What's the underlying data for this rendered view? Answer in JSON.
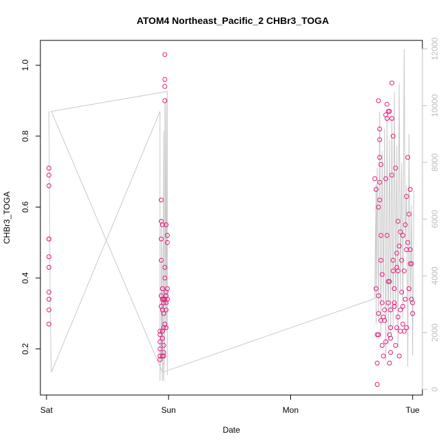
{
  "chart_data": {
    "type": "scatter",
    "title": "ATOM4 Northeast_Pacific_2 CHBr3_TOGA",
    "xlabel": "Date",
    "ylabel": "CHBr3_TOGA",
    "x_unit": "days since Sat 00:00",
    "xlim": [
      -0.05,
      3.08
    ],
    "ylim": [
      0.07,
      1.07
    ],
    "right_ylim": [
      -200,
      12300
    ],
    "x_ticks": [
      {
        "value": 0,
        "label": "Sat"
      },
      {
        "value": 1,
        "label": "Sun"
      },
      {
        "value": 2,
        "label": "Mon"
      },
      {
        "value": 3,
        "label": "Tue"
      }
    ],
    "y_ticks": [
      0.2,
      0.4,
      0.6,
      0.8,
      1.0
    ],
    "y_tick_labels": [
      "0.2",
      "0.4",
      "0.6",
      "0.8",
      "1.0"
    ],
    "right_ticks": [
      0,
      2000,
      4000,
      6000,
      8000,
      10000,
      12000
    ],
    "right_tick_labels": [
      "0",
      "2000",
      "4000",
      "6000",
      "8000",
      "10000",
      "12000"
    ],
    "colors": {
      "points": "#e0187a",
      "line": "#c8c8c8",
      "axis": "#000000",
      "right_axis": "#bdbdbd"
    },
    "series": [
      {
        "role": "points",
        "x": [
          0.02,
          0.02,
          0.02,
          0.02,
          0.02,
          0.02,
          0.02,
          0.02,
          0.02,
          0.02,
          0.02,
          0.93,
          0.93,
          0.93,
          0.93,
          0.93,
          0.93,
          0.94,
          0.94,
          0.94,
          0.94,
          0.94,
          0.94,
          0.95,
          0.95,
          0.95,
          0.95,
          0.95,
          0.95,
          0.95,
          0.96,
          0.96,
          0.96,
          0.96,
          0.96,
          0.96,
          0.96,
          0.97,
          0.97,
          0.97,
          0.97,
          0.97,
          0.97,
          0.97,
          0.97,
          0.98,
          0.98,
          0.98,
          0.98,
          0.98,
          0.98,
          0.99,
          0.99,
          0.99,
          0.99,
          2.69,
          2.7,
          2.7,
          2.71,
          2.71,
          2.71,
          2.72,
          2.72,
          2.72,
          2.72,
          2.72,
          2.73,
          2.73,
          2.73,
          2.73,
          2.73,
          2.74,
          2.74,
          2.74,
          2.74,
          2.75,
          2.75,
          2.75,
          2.76,
          2.76,
          2.77,
          2.77,
          2.78,
          2.78,
          2.78,
          2.79,
          2.79,
          2.79,
          2.8,
          2.8,
          2.8,
          2.81,
          2.81,
          2.81,
          2.81,
          2.82,
          2.82,
          2.82,
          2.82,
          2.83,
          2.83,
          2.83,
          2.84,
          2.84,
          2.84,
          2.85,
          2.85,
          2.85,
          2.86,
          2.86,
          2.87,
          2.87,
          2.87,
          2.88,
          2.88,
          2.88,
          2.89,
          2.89,
          2.9,
          2.9,
          2.9,
          2.91,
          2.91,
          2.92,
          2.92,
          2.92,
          2.93,
          2.93,
          2.94,
          2.94,
          2.95,
          2.95,
          2.95,
          2.96,
          2.96,
          2.97,
          2.97,
          2.98,
          2.98,
          2.98,
          2.99,
          2.99,
          3.0,
          3.0
        ],
        "y": [
          0.71,
          0.69,
          0.66,
          0.51,
          0.51,
          0.46,
          0.43,
          0.36,
          0.34,
          0.31,
          0.27,
          0.25,
          0.24,
          0.22,
          0.2,
          0.18,
          0.17,
          0.62,
          0.56,
          0.51,
          0.45,
          0.35,
          0.32,
          0.55,
          0.37,
          0.34,
          0.31,
          0.25,
          0.23,
          0.18,
          0.33,
          0.3,
          0.26,
          0.21,
          0.19,
          0.18,
          0.34,
          1.03,
          0.96,
          0.94,
          0.9,
          0.43,
          0.4,
          0.34,
          0.27,
          0.36,
          0.33,
          0.31,
          0.26,
          0.55,
          0.35,
          0.52,
          0.37,
          0.34,
          0.5,
          0.68,
          0.65,
          0.37,
          0.24,
          0.16,
          0.1,
          0.9,
          0.6,
          0.35,
          0.3,
          0.24,
          0.82,
          0.79,
          0.74,
          0.67,
          0.62,
          0.72,
          0.52,
          0.45,
          0.28,
          0.41,
          0.33,
          0.21,
          0.29,
          0.18,
          0.31,
          0.28,
          0.86,
          0.68,
          0.22,
          0.89,
          0.85,
          0.52,
          0.87,
          0.39,
          0.33,
          0.87,
          0.39,
          0.24,
          0.16,
          0.31,
          0.26,
          0.23,
          0.19,
          0.95,
          0.85,
          0.69,
          0.42,
          0.8,
          0.45,
          0.33,
          0.37,
          0.32,
          0.21,
          0.71,
          0.47,
          0.26,
          0.43,
          0.29,
          0.56,
          0.42,
          0.18,
          0.49,
          0.25,
          0.31,
          0.53,
          0.36,
          0.45,
          0.27,
          0.52,
          0.32,
          0.42,
          0.25,
          0.55,
          0.34,
          0.63,
          0.48,
          0.26,
          0.74,
          0.5,
          0.58,
          0.37,
          0.48,
          0.44,
          0.65,
          0.44,
          0.34,
          0.33,
          0.3
        ]
      },
      {
        "role": "line",
        "x": [
          0.02,
          0.03,
          0.04,
          0.93,
          0.93,
          0.94,
          0.94,
          0.95,
          0.96,
          0.96,
          0.97,
          0.97,
          0.98,
          0.98,
          0.99,
          0.99,
          0.04,
          0.95,
          2.69,
          2.7,
          2.7,
          2.71,
          2.72,
          2.73,
          2.74,
          2.75,
          2.76,
          2.77,
          2.78,
          2.79,
          2.8,
          2.81,
          2.82,
          2.83,
          2.84,
          2.85,
          2.86,
          2.87,
          2.88,
          2.89,
          2.9,
          2.91,
          2.92,
          2.93,
          2.94,
          2.95,
          2.96,
          2.97,
          2.98,
          2.99,
          3.0,
          3.01
        ],
        "y": [
          9800,
          2800,
          600,
          9800,
          300,
          2200,
          6000,
          300,
          9100,
          300,
          2000,
          10100,
          2200,
          10300,
          500,
          10500,
          9800,
          600,
          3200,
          7200,
          2300,
          7800,
          2500,
          9800,
          1800,
          8400,
          3000,
          9200,
          1000,
          9600,
          1600,
          8800,
          2000,
          9600,
          2200,
          10500,
          2800,
          8600,
          1500,
          10800,
          3500,
          8000,
          2500,
          12000,
          5000,
          7200,
          800,
          9000,
          3000,
          6500,
          1200,
          7000
        ]
      }
    ]
  }
}
